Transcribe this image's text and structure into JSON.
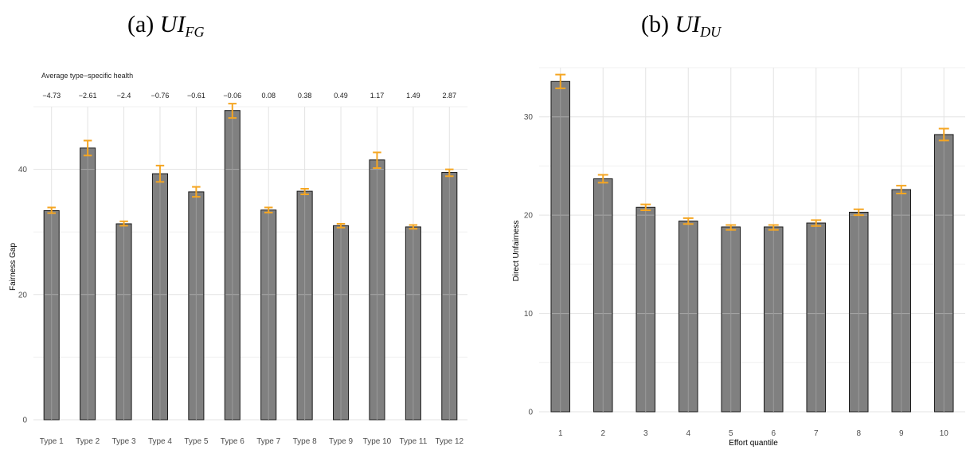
{
  "panel_a": {
    "title_prefix": "(a) ",
    "title_main": "UI",
    "title_sub": "FG"
  },
  "panel_b": {
    "title_prefix": "(b) ",
    "title_main": "UI",
    "title_sub": "DU"
  },
  "colors": {
    "bar": "#808080",
    "bar_edge": "#1a1a1a",
    "errorbar": "#f5a623",
    "grid": "#e3e3e3"
  },
  "chart_data": [
    {
      "type": "bar",
      "title": "(a) UI_FG",
      "xlabel": "",
      "ylabel": "Fairness Gap",
      "ylim": [
        0,
        50
      ],
      "yticks": [
        0,
        20,
        40
      ],
      "grid": true,
      "categories": [
        "Type 1",
        "Type 2",
        "Type 3",
        "Type 4",
        "Type 5",
        "Type 6",
        "Type 7",
        "Type 8",
        "Type 9",
        "Type 10",
        "Type 11",
        "Type 12"
      ],
      "values": [
        33.4,
        43.4,
        31.3,
        39.3,
        36.4,
        49.4,
        33.5,
        36.5,
        31.0,
        41.5,
        30.8,
        39.5
      ],
      "error_low": [
        33.0,
        42.2,
        31.0,
        38.0,
        35.6,
        48.2,
        33.1,
        36.0,
        30.7,
        40.2,
        30.5,
        38.9
      ],
      "error_high": [
        33.9,
        44.6,
        31.7,
        40.6,
        37.2,
        50.5,
        33.9,
        36.9,
        31.3,
        42.7,
        31.1,
        40.0
      ],
      "annotation_header": "Average type−specific health",
      "annotations": [
        "−4.73",
        "−2.61",
        "−2.4",
        "−0.76",
        "−0.61",
        "−0.06",
        "0.08",
        "0.38",
        "0.49",
        "1.17",
        "1.49",
        "2.87"
      ]
    },
    {
      "type": "bar",
      "title": "(b) UI_DU",
      "xlabel": "Effort quantile",
      "ylabel": "Direct Unfairness",
      "ylim": [
        0,
        35
      ],
      "yticks": [
        0,
        10,
        20,
        30
      ],
      "grid": true,
      "categories": [
        "1",
        "2",
        "3",
        "4",
        "5",
        "6",
        "7",
        "8",
        "9",
        "10"
      ],
      "values": [
        33.6,
        23.7,
        20.8,
        19.4,
        18.8,
        18.8,
        19.2,
        20.3,
        22.6,
        28.2
      ],
      "error_low": [
        32.9,
        23.3,
        20.5,
        19.1,
        18.5,
        18.5,
        18.9,
        20.0,
        22.2,
        27.6
      ],
      "error_high": [
        34.3,
        24.1,
        21.1,
        19.7,
        19.0,
        19.0,
        19.5,
        20.6,
        23.0,
        28.8
      ]
    }
  ]
}
